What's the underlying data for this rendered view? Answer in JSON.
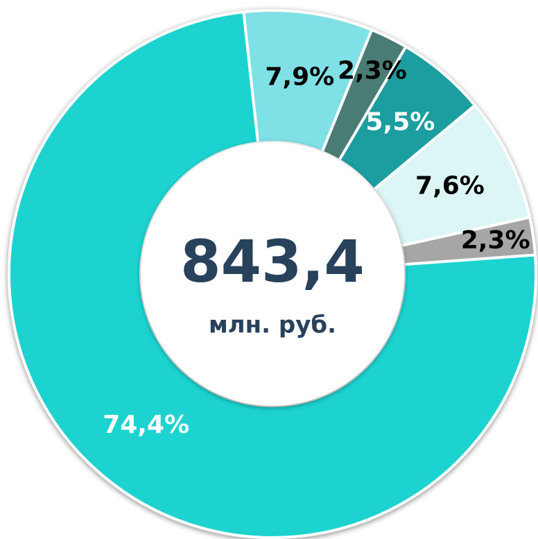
{
  "chart_data": {
    "type": "donut",
    "categories": [
      null,
      null,
      null,
      null,
      null,
      null
    ],
    "values": [
      7.9,
      2.3,
      5.5,
      7.6,
      2.3,
      74.4
    ],
    "value_labels": [
      "7,9%",
      "2,3%",
      "5,5%",
      "7,6%",
      "2,3%",
      "74,4%"
    ],
    "colors": [
      "#7fe0e6",
      "#4a7c74",
      "#1e9ea0",
      "#dcf6f5",
      "#a6a6a6",
      "#1dd3d0"
    ],
    "label_colors": [
      "#000000",
      "#000000",
      "#ffffff",
      "#000000",
      "#000000",
      "#ffffff"
    ],
    "center_label": "843,4",
    "center_unit": "млн. руб."
  }
}
